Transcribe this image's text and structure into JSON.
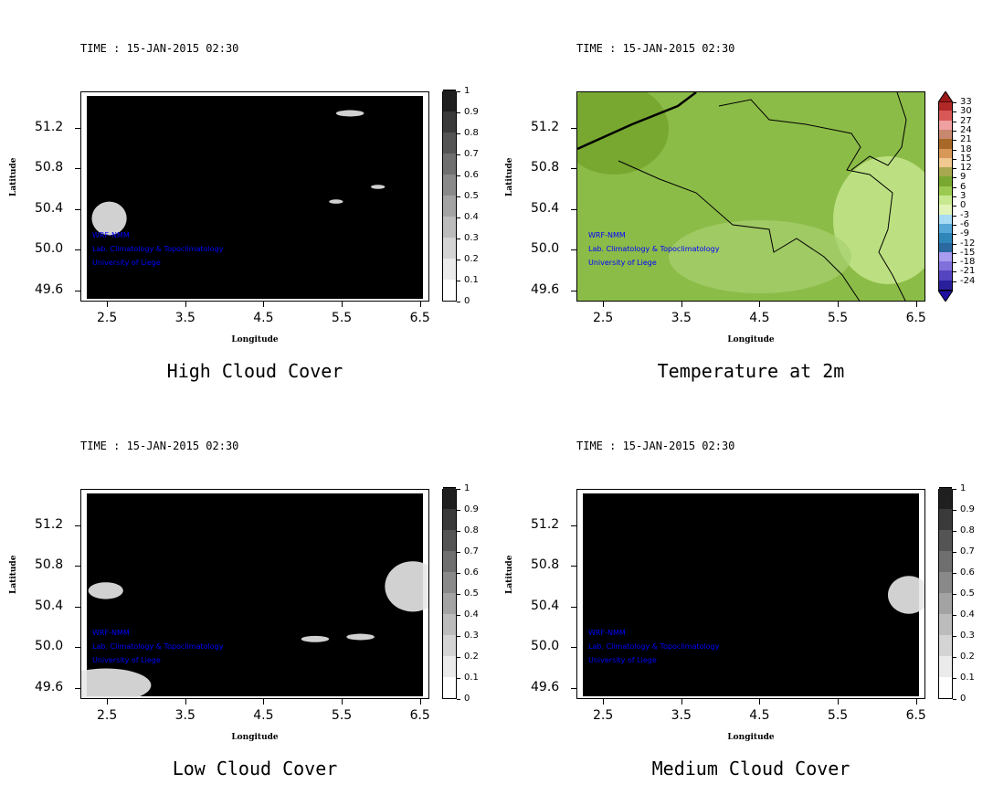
{
  "panels": [
    {
      "time": "TIME : 15-JAN-2015 02:30",
      "title": "High Cloud Cover",
      "field": "cloud",
      "blobs": [
        [
          0.08,
          0.6,
          0.05,
          0.08
        ],
        [
          0.77,
          0.1,
          0.04,
          0.015
        ],
        [
          0.73,
          0.52,
          0.02,
          0.01
        ],
        [
          0.85,
          0.45,
          0.02,
          0.01
        ]
      ]
    },
    {
      "time": "TIME : 15-JAN-2015 02:30",
      "title": "Temperature at 2m",
      "field": "temp"
    },
    {
      "time": "TIME : 15-JAN-2015 02:30",
      "title": "Low Cloud Cover",
      "field": "cloud",
      "blobs": [
        [
          0.07,
          0.93,
          0.13,
          0.08
        ],
        [
          0.07,
          0.48,
          0.05,
          0.04
        ],
        [
          0.95,
          0.46,
          0.08,
          0.12
        ],
        [
          0.67,
          0.71,
          0.04,
          0.015
        ],
        [
          0.8,
          0.7,
          0.04,
          0.015
        ]
      ]
    },
    {
      "time": "TIME : 15-JAN-2015 02:30",
      "title": "Medium Cloud Cover",
      "field": "cloud",
      "blobs": [
        [
          0.95,
          0.5,
          0.06,
          0.09
        ]
      ]
    }
  ],
  "axes": {
    "xlabel": "Longitude",
    "ylabel": "Latitude",
    "xlim": [
      2.16,
      6.62
    ],
    "ylim": [
      49.49,
      51.56
    ],
    "xticks": [
      "2.5",
      "3.5",
      "4.5",
      "5.5",
      "6.5"
    ],
    "yticks": [
      "51.2",
      "50.8",
      "50.4",
      "50.0",
      "49.6"
    ]
  },
  "watermark": [
    "WRF-NMM",
    "Lab. Climatology & Topoclimatology",
    "University of Liege"
  ],
  "gray_colorbar": {
    "labels": [
      "0",
      "0.1",
      "0.2",
      "0.3",
      "0.4",
      "0.5",
      "0.6",
      "0.7",
      "0.8",
      "0.9",
      "1"
    ],
    "colors": [
      "#ffffff",
      "#ebebeb",
      "#d4d4d4",
      "#bcbcbc",
      "#a3a3a3",
      "#898989",
      "#6f6f6f",
      "#545454",
      "#3a3a3a",
      "#1f1f1f"
    ]
  },
  "temp_colorbar": {
    "labels": [
      "-24",
      "-21",
      "-18",
      "-15",
      "-12",
      "-9",
      "-6",
      "-3",
      "0",
      "3",
      "6",
      "9",
      "12",
      "15",
      "18",
      "21",
      "24",
      "27",
      "30",
      "33"
    ],
    "colors": [
      "#2a1f9a",
      "#5444c0",
      "#8070dc",
      "#a89cf0",
      "#2a6aa0",
      "#2f86b8",
      "#55a8d8",
      "#a8dcf4",
      "#e0f4b8",
      "#c8e890",
      "#9cca50",
      "#78a830",
      "#a8a850",
      "#f0c890",
      "#d89858",
      "#a86828",
      "#c88870",
      "#f0a0a0",
      "#d85858",
      "#b02828"
    ],
    "max_color": "#9a1818",
    "min_color": "#2010a0"
  }
}
